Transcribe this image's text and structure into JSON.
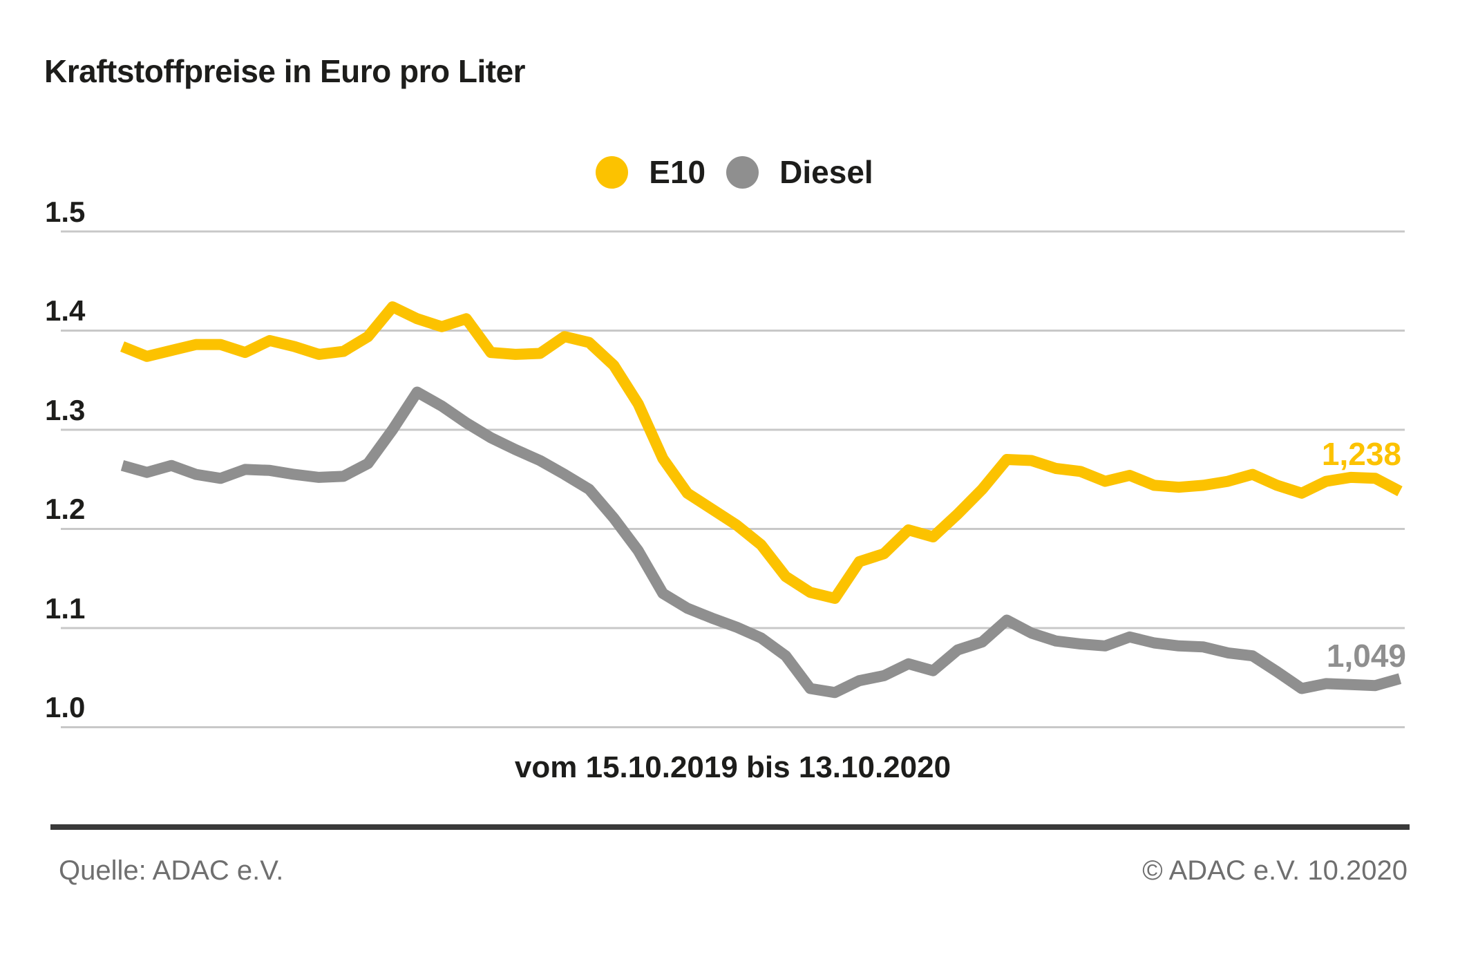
{
  "header": {
    "title": "Kraftstoffpreise in Euro pro Liter"
  },
  "legend": {
    "items": [
      {
        "label": "E10",
        "color": "#fcc200"
      },
      {
        "label": "Diesel",
        "color": "#8f8f8f"
      }
    ]
  },
  "chart_data": {
    "type": "line",
    "title": "Kraftstoffpreise in Euro pro Liter",
    "xlabel": "vom 15.10.2019 bis 13.10.2020",
    "ylabel": "Euro pro Liter",
    "x_unit": "weekly values from 15.10.2019 to 13.10.2020",
    "yticks": [
      "1.5",
      "1.4",
      "1.3",
      "1.2",
      "1.1",
      "1.0"
    ],
    "ylim": [
      1.0,
      1.5
    ],
    "grid": true,
    "grid_color": "#c8c8c8",
    "legend_position": "top-center",
    "series": [
      {
        "name": "E10",
        "color": "#fcc200",
        "end_label": "1,238",
        "end_value": 1.238,
        "values": [
          1.384,
          1.374,
          1.38,
          1.386,
          1.386,
          1.378,
          1.39,
          1.384,
          1.376,
          1.379,
          1.394,
          1.424,
          1.412,
          1.404,
          1.412,
          1.378,
          1.376,
          1.377,
          1.394,
          1.388,
          1.365,
          1.326,
          1.271,
          1.236,
          1.22,
          1.204,
          1.184,
          1.152,
          1.136,
          1.13,
          1.167,
          1.175,
          1.199,
          1.192,
          1.215,
          1.24,
          1.27,
          1.269,
          1.261,
          1.258,
          1.248,
          1.254,
          1.244,
          1.242,
          1.244,
          1.248,
          1.255,
          1.244,
          1.236,
          1.248,
          1.252,
          1.251,
          1.238
        ]
      },
      {
        "name": "Diesel",
        "color": "#8f8f8f",
        "end_label": "1,049",
        "end_value": 1.049,
        "values": [
          1.264,
          1.257,
          1.264,
          1.255,
          1.251,
          1.26,
          1.259,
          1.255,
          1.252,
          1.253,
          1.266,
          1.3,
          1.338,
          1.324,
          1.307,
          1.292,
          1.28,
          1.269,
          1.255,
          1.24,
          1.211,
          1.178,
          1.135,
          1.12,
          1.11,
          1.101,
          1.09,
          1.072,
          1.039,
          1.035,
          1.047,
          1.052,
          1.064,
          1.057,
          1.078,
          1.086,
          1.108,
          1.095,
          1.087,
          1.084,
          1.082,
          1.091,
          1.085,
          1.082,
          1.081,
          1.075,
          1.072,
          1.056,
          1.039,
          1.044,
          1.043,
          1.042,
          1.049
        ]
      }
    ]
  },
  "footer": {
    "source": "Quelle: ADAC e.V.",
    "copyright": "© ADAC e.V. 10.2020"
  }
}
